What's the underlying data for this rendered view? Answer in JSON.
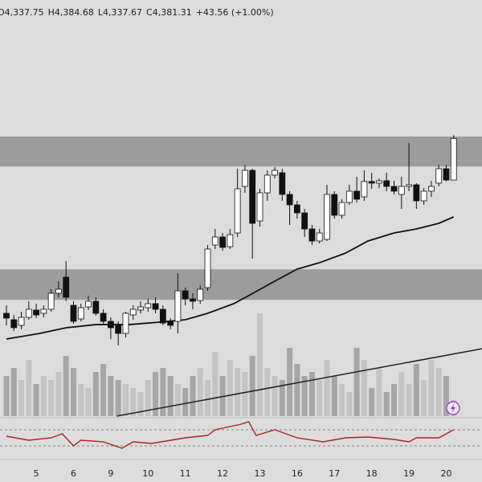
{
  "chart_data": {
    "type": "candlestick",
    "header": [
      "O4,337.75",
      "H4,384.68",
      "L4,337.67",
      "C4,381.31",
      "+43.56 (+1.00%)"
    ],
    "categories": [
      null,
      null,
      null,
      null,
      "5",
      null,
      null,
      null,
      null,
      "6",
      null,
      null,
      null,
      null,
      "9",
      null,
      null,
      null,
      null,
      "10",
      null,
      null,
      null,
      null,
      "11",
      null,
      null,
      null,
      null,
      "12",
      null,
      null,
      null,
      null,
      "13",
      null,
      null,
      null,
      null,
      "16",
      null,
      null,
      null,
      null,
      "17",
      null,
      null,
      null,
      null,
      "18",
      null,
      null,
      null,
      null,
      "19",
      null,
      null,
      null,
      null,
      "20",
      null
    ],
    "open": [
      4198.4,
      4191.7,
      4185.8,
      4194.2,
      4201.8,
      4198.4,
      4202.6,
      4219.4,
      4236.2,
      4206.8,
      4192.5,
      4205.1,
      4211,
      4198.4,
      4190,
      4185.8,
      4177.4,
      4196.7,
      4201.8,
      4204.3,
      4208.5,
      4202.6,
      4190,
      4190,
      4221.9,
      4213.5,
      4211.8,
      4225.3,
      4269.8,
      4278.2,
      4268.1,
      4282.4,
      4331.1,
      4347.9,
      4295,
      4324.4,
      4342.9,
      4345.4,
      4322.7,
      4311.8,
      4303.4,
      4286.6,
      4274,
      4275.7,
      4322.7,
      4300.9,
      4314.3,
      4326.1,
      4320.2,
      4336.2,
      4334.5,
      4337,
      4331.1,
      4322.7,
      4331.1,
      4332.8,
      4316,
      4326.1,
      4334.5,
      4349.6,
      4337.75
    ],
    "high": [
      4206.8,
      4196.7,
      4200.1,
      4211,
      4208.5,
      4206.8,
      4223.6,
      4232,
      4253,
      4211,
      4208.5,
      4216.9,
      4215.2,
      4202.6,
      4194.2,
      4190,
      4200.1,
      4206.8,
      4211,
      4213.5,
      4215.2,
      4206.8,
      4193.4,
      4240.4,
      4225.3,
      4219.4,
      4227.8,
      4269.8,
      4286.6,
      4282.4,
      4286.6,
      4349.6,
      4353.8,
      4349.6,
      4328.6,
      4347.9,
      4351.3,
      4349.6,
      4326.1,
      4316,
      4307.6,
      4290.8,
      4286.6,
      4332.8,
      4326.1,
      4317.7,
      4332.8,
      4341.2,
      4347.9,
      4345.4,
      4339.5,
      4345.4,
      4337,
      4341.2,
      4376.5,
      4334.5,
      4329.4,
      4337,
      4353.8,
      4353.8,
      4384.68
    ],
    "low": [
      4185.8,
      4179.9,
      4181.6,
      4191.7,
      4193.4,
      4194.2,
      4200.1,
      4215.2,
      4211,
      4187.5,
      4190,
      4201.8,
      4195.9,
      4185.8,
      4171.5,
      4164.8,
      4173.2,
      4191.7,
      4198.4,
      4200.1,
      4198.4,
      4185.8,
      4181.6,
      4177.4,
      4206.8,
      4202.6,
      4208.5,
      4221.9,
      4265.6,
      4263.9,
      4265.6,
      4278.2,
      4324.4,
      4255.5,
      4289.1,
      4316,
      4339.5,
      4316,
      4290.8,
      4297.5,
      4278.2,
      4269.8,
      4271.5,
      4274,
      4297.5,
      4297.5,
      4311.8,
      4314.3,
      4316,
      4328.6,
      4329.4,
      4326.1,
      4322.7,
      4307.6,
      4326.1,
      4307.6,
      4311.8,
      4320.2,
      4331.1,
      4336.2,
      4337.67
    ],
    "close": [
      4193.4,
      4183.3,
      4194.2,
      4202.6,
      4196.7,
      4202.6,
      4219.4,
      4223.6,
      4215.2,
      4190,
      4204.3,
      4211,
      4198.4,
      4190,
      4183.3,
      4177.4,
      4198.4,
      4202.6,
      4205.1,
      4208.5,
      4202.6,
      4188.3,
      4185.8,
      4221.9,
      4213.5,
      4211,
      4223.6,
      4265.6,
      4278.2,
      4267.3,
      4280.7,
      4328.6,
      4347.9,
      4292.5,
      4324.4,
      4342.9,
      4347.9,
      4322.7,
      4311.8,
      4303.4,
      4286.6,
      4274,
      4282.4,
      4322.7,
      4300.9,
      4314.3,
      4326.1,
      4317.7,
      4336.2,
      4334.5,
      4337,
      4331.1,
      4326.1,
      4331.1,
      4332.8,
      4316,
      4326.1,
      4331.1,
      4349.6,
      4337.8,
      4381.31
    ],
    "volume": [
      50,
      60,
      45,
      70,
      40,
      50,
      45,
      55,
      75,
      60,
      40,
      35,
      55,
      65,
      50,
      45,
      40,
      35,
      30,
      45,
      55,
      60,
      50,
      40,
      35,
      50,
      60,
      45,
      80,
      50,
      70,
      60,
      55,
      75,
      128,
      60,
      50,
      45,
      85,
      65,
      50,
      55,
      45,
      70,
      50,
      40,
      30,
      85,
      70,
      35,
      60,
      30,
      40,
      55,
      40,
      65,
      45,
      70,
      60,
      50,
      20
    ],
    "volume_ylim": [
      0,
      518
    ],
    "ma": {
      "x": [
        0,
        4.5,
        8,
        12,
        16.5,
        20.5,
        24,
        27,
        30.5,
        32.5,
        36,
        39,
        42,
        45.5,
        48.5,
        52,
        55,
        58,
        60
      ],
      "values": [
        4171.5,
        4177.4,
        4183.3,
        4186.6,
        4186.6,
        4189.2,
        4191.7,
        4198.4,
        4208.5,
        4216.9,
        4232,
        4244.6,
        4251.3,
        4261.4,
        4274,
        4282.4,
        4286.6,
        4292.5,
        4299.2
      ]
    },
    "trendline": {
      "x": [
        14.8,
        63.8
      ],
      "values": [
        4090.9,
        4161.4
      ]
    },
    "zones": [
      {
        "low": 4351.9,
        "high": 4383.2
      },
      {
        "low": 4212.5,
        "high": 4244.4
      }
    ],
    "rsi": {
      "x": [
        0,
        3,
        6,
        7.5,
        9,
        10,
        13,
        15.5,
        17,
        19.5,
        24,
        27,
        28,
        31.5,
        32.5,
        33.5,
        36,
        39,
        42.5,
        45.5,
        48.5,
        52,
        54,
        55,
        58,
        59,
        60
      ],
      "values": [
        54,
        44,
        50,
        60,
        30,
        44,
        40,
        24,
        40,
        36,
        50,
        56,
        70,
        84,
        90,
        56,
        70,
        50,
        40,
        50,
        52,
        46,
        40,
        50,
        50,
        60,
        70
      ],
      "ylim": [
        0,
        100
      ],
      "levels": [
        70,
        30
      ],
      "color": "#b22222"
    },
    "xlim": [
      -0.86,
      63.8
    ],
    "ylim": [
      4090.9,
      4526
    ],
    "up_color": "#ffffff",
    "down_color": "#111111",
    "volume_up_color": "#c4c4c4",
    "volume_down_color": "#a6a6a6",
    "zone_color": "#9c9c9c",
    "ma_color": "#111111",
    "trendline_color": "#222222"
  }
}
